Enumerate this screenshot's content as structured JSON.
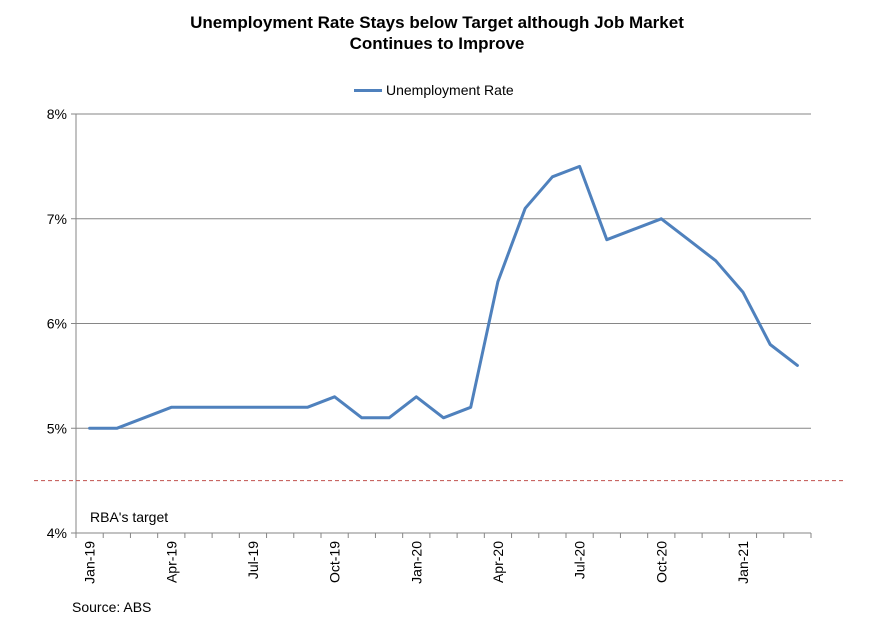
{
  "chart_data": {
    "type": "line",
    "title_line1": "Unemployment Rate Stays below Target although Job Market",
    "title_line2": "Continues to Improve",
    "x": [
      "Jan-19",
      "Feb-19",
      "Mar-19",
      "Apr-19",
      "May-19",
      "Jun-19",
      "Jul-19",
      "Aug-19",
      "Sep-19",
      "Oct-19",
      "Nov-19",
      "Dec-19",
      "Jan-20",
      "Feb-20",
      "Mar-20",
      "Apr-20",
      "May-20",
      "Jun-20",
      "Jul-20",
      "Aug-20",
      "Sep-20",
      "Oct-20",
      "Nov-20",
      "Dec-20",
      "Jan-21",
      "Feb-21",
      "Mar-21"
    ],
    "tick_labels": [
      "Jan-19",
      "Apr-19",
      "Jul-19",
      "Oct-19",
      "Jan-20",
      "Apr-20",
      "Jul-20",
      "Oct-20",
      "Jan-21"
    ],
    "series": [
      {
        "name": "Unemployment Rate",
        "color": "#4F81BD",
        "values": [
          5.0,
          5.0,
          5.1,
          5.2,
          5.2,
          5.2,
          5.2,
          5.2,
          5.2,
          5.3,
          5.1,
          5.1,
          5.3,
          5.1,
          5.2,
          6.4,
          7.1,
          7.4,
          7.5,
          6.8,
          6.9,
          7.0,
          6.8,
          6.6,
          6.3,
          5.8,
          5.6
        ]
      }
    ],
    "ylim": [
      4,
      8
    ],
    "yticks": [
      4,
      5,
      6,
      7,
      8
    ],
    "ytick_labels": [
      "4%",
      "5%",
      "6%",
      "7%",
      "8%"
    ],
    "target_line": {
      "value": 4.5,
      "label": "RBA's target",
      "color": "#C0504D"
    },
    "legend_position": "top-center",
    "grid": true,
    "source": "Source: ABS"
  }
}
